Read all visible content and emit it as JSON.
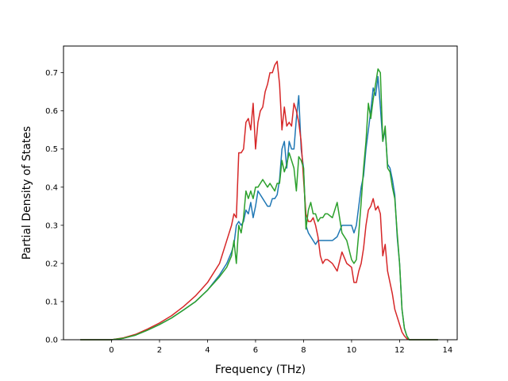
{
  "chart_data": {
    "type": "line",
    "xlabel": "Frequency (THz)",
    "ylabel": "Partial Density of States",
    "xlim": [
      -2.0,
      14.4
    ],
    "ylim": [
      0.0,
      0.77
    ],
    "xticks": [
      "0",
      "2",
      "4",
      "6",
      "8",
      "10",
      "12",
      "14"
    ],
    "yticks": [
      "0.0",
      "0.1",
      "0.2",
      "0.3",
      "0.4",
      "0.5",
      "0.6",
      "0.7"
    ],
    "grid": false,
    "legend": "none",
    "series": [
      {
        "color": "#1f77b4",
        "x": [
          -1.3,
          0.0,
          0.5,
          1.0,
          1.5,
          2.0,
          2.5,
          3.0,
          3.5,
          4.0,
          4.5,
          4.8,
          5.0,
          5.1,
          5.2,
          5.3,
          5.4,
          5.5,
          5.6,
          5.7,
          5.8,
          5.9,
          6.0,
          6.1,
          6.2,
          6.3,
          6.4,
          6.5,
          6.6,
          6.7,
          6.8,
          6.9,
          7.0,
          7.1,
          7.2,
          7.3,
          7.4,
          7.5,
          7.6,
          7.7,
          7.8,
          7.9,
          8.0,
          8.1,
          8.2,
          8.3,
          8.4,
          8.5,
          8.6,
          8.7,
          8.8,
          8.9,
          9.0,
          9.2,
          9.4,
          9.6,
          9.8,
          10.0,
          10.1,
          10.2,
          10.3,
          10.4,
          10.5,
          10.6,
          10.7,
          10.8,
          10.9,
          11.0,
          11.1,
          11.2,
          11.3,
          11.4,
          11.5,
          11.6,
          11.7,
          11.8,
          11.9,
          12.0,
          12.1,
          12.2,
          12.3,
          12.4,
          12.5,
          13.6
        ],
        "y": [
          0.0,
          0.0,
          0.004,
          0.012,
          0.025,
          0.04,
          0.057,
          0.078,
          0.1,
          0.13,
          0.17,
          0.2,
          0.23,
          0.25,
          0.3,
          0.31,
          0.3,
          0.31,
          0.34,
          0.33,
          0.36,
          0.32,
          0.35,
          0.39,
          0.38,
          0.37,
          0.36,
          0.35,
          0.35,
          0.37,
          0.37,
          0.38,
          0.42,
          0.5,
          0.52,
          0.45,
          0.52,
          0.5,
          0.5,
          0.58,
          0.64,
          0.5,
          0.45,
          0.3,
          0.28,
          0.27,
          0.26,
          0.25,
          0.26,
          0.26,
          0.26,
          0.26,
          0.26,
          0.26,
          0.27,
          0.3,
          0.3,
          0.3,
          0.28,
          0.3,
          0.35,
          0.4,
          0.43,
          0.5,
          0.55,
          0.6,
          0.66,
          0.64,
          0.69,
          0.61,
          0.52,
          0.55,
          0.46,
          0.45,
          0.42,
          0.38,
          0.27,
          0.2,
          0.08,
          0.03,
          0.01,
          0.0,
          0.0,
          0.0
        ]
      },
      {
        "color": "#d62728",
        "x": [
          -1.3,
          0.0,
          0.5,
          1.0,
          1.5,
          2.0,
          2.5,
          3.0,
          3.5,
          4.0,
          4.5,
          4.8,
          5.0,
          5.1,
          5.2,
          5.3,
          5.4,
          5.5,
          5.6,
          5.7,
          5.8,
          5.9,
          6.0,
          6.1,
          6.2,
          6.3,
          6.4,
          6.5,
          6.6,
          6.7,
          6.8,
          6.9,
          7.0,
          7.1,
          7.2,
          7.3,
          7.4,
          7.5,
          7.6,
          7.7,
          7.8,
          7.9,
          8.0,
          8.1,
          8.2,
          8.3,
          8.4,
          8.5,
          8.6,
          8.7,
          8.8,
          8.9,
          9.0,
          9.2,
          9.4,
          9.6,
          9.8,
          10.0,
          10.1,
          10.2,
          10.3,
          10.4,
          10.5,
          10.6,
          10.7,
          10.8,
          10.9,
          11.0,
          11.1,
          11.2,
          11.3,
          11.4,
          11.5,
          11.6,
          11.7,
          11.8,
          11.9,
          12.0,
          12.1,
          12.2,
          12.3,
          12.4,
          12.5,
          13.6
        ],
        "y": [
          0.0,
          0.0,
          0.005,
          0.014,
          0.028,
          0.044,
          0.063,
          0.087,
          0.115,
          0.15,
          0.2,
          0.26,
          0.3,
          0.33,
          0.32,
          0.49,
          0.49,
          0.5,
          0.57,
          0.58,
          0.55,
          0.62,
          0.5,
          0.57,
          0.6,
          0.61,
          0.65,
          0.67,
          0.7,
          0.7,
          0.72,
          0.73,
          0.67,
          0.55,
          0.61,
          0.56,
          0.57,
          0.56,
          0.62,
          0.6,
          0.57,
          0.52,
          0.42,
          0.33,
          0.31,
          0.31,
          0.32,
          0.3,
          0.27,
          0.22,
          0.2,
          0.21,
          0.21,
          0.2,
          0.18,
          0.23,
          0.2,
          0.19,
          0.15,
          0.15,
          0.18,
          0.2,
          0.24,
          0.3,
          0.34,
          0.35,
          0.37,
          0.34,
          0.35,
          0.33,
          0.22,
          0.25,
          0.18,
          0.15,
          0.12,
          0.08,
          0.06,
          0.04,
          0.02,
          0.01,
          0.003,
          0.0,
          0.0,
          0.0
        ]
      },
      {
        "color": "#2ca02c",
        "x": [
          -1.3,
          0.0,
          0.5,
          1.0,
          1.5,
          2.0,
          2.5,
          3.0,
          3.5,
          4.0,
          4.5,
          4.8,
          5.0,
          5.1,
          5.2,
          5.3,
          5.4,
          5.5,
          5.6,
          5.7,
          5.8,
          5.9,
          6.0,
          6.1,
          6.2,
          6.3,
          6.4,
          6.5,
          6.6,
          6.7,
          6.8,
          6.9,
          7.0,
          7.1,
          7.2,
          7.3,
          7.4,
          7.5,
          7.6,
          7.7,
          7.8,
          7.9,
          8.0,
          8.1,
          8.2,
          8.3,
          8.4,
          8.5,
          8.6,
          8.7,
          8.8,
          8.9,
          9.0,
          9.2,
          9.4,
          9.6,
          9.8,
          10.0,
          10.1,
          10.2,
          10.3,
          10.4,
          10.5,
          10.6,
          10.7,
          10.8,
          10.9,
          11.0,
          11.1,
          11.2,
          11.3,
          11.4,
          11.5,
          11.6,
          11.7,
          11.8,
          11.9,
          12.0,
          12.1,
          12.2,
          12.3,
          12.4,
          12.5,
          13.6
        ],
        "y": [
          0.0,
          0.0,
          0.004,
          0.012,
          0.025,
          0.04,
          0.057,
          0.078,
          0.1,
          0.13,
          0.165,
          0.19,
          0.22,
          0.26,
          0.2,
          0.3,
          0.28,
          0.32,
          0.39,
          0.37,
          0.39,
          0.37,
          0.4,
          0.4,
          0.41,
          0.42,
          0.41,
          0.4,
          0.41,
          0.4,
          0.39,
          0.41,
          0.41,
          0.47,
          0.44,
          0.46,
          0.49,
          0.47,
          0.45,
          0.39,
          0.48,
          0.47,
          0.45,
          0.29,
          0.34,
          0.36,
          0.33,
          0.33,
          0.31,
          0.32,
          0.32,
          0.33,
          0.33,
          0.32,
          0.36,
          0.28,
          0.26,
          0.21,
          0.2,
          0.21,
          0.28,
          0.36,
          0.45,
          0.52,
          0.62,
          0.58,
          0.63,
          0.67,
          0.71,
          0.7,
          0.52,
          0.56,
          0.45,
          0.44,
          0.4,
          0.37,
          0.28,
          0.2,
          0.08,
          0.03,
          0.01,
          0.0,
          0.0,
          0.0
        ]
      }
    ]
  }
}
